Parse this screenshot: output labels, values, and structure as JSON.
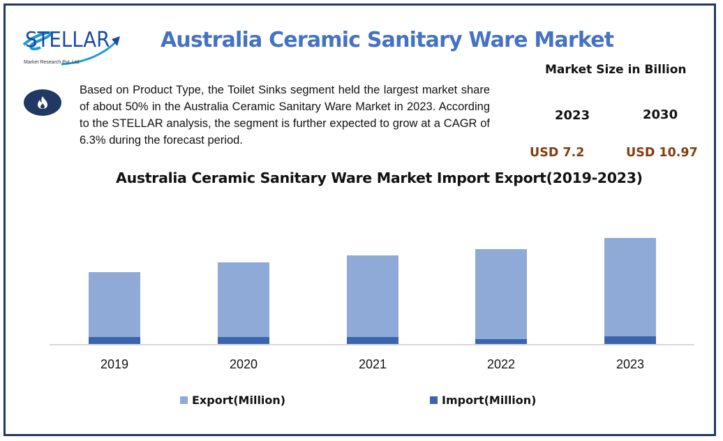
{
  "header": {
    "logo": {
      "brand": "STELLAR",
      "tagline": "Market Research Pvt. Ltd."
    },
    "title": "Australia Ceramic Sanitary Ware Market"
  },
  "insight": {
    "icon": "fire-icon",
    "text": "Based on Product Type, the Toilet Sinks segment held the largest market share of about 50% in the Australia Ceramic Sanitary Ware Market in 2023.  According to the STELLAR analysis, the segment is further expected to grow at a CAGR of 6.3% during the forecast period."
  },
  "market_size": {
    "title": "Market Size in Billion",
    "years": [
      "2023",
      "2030"
    ],
    "values": [
      "USD 7.2",
      "USD 10.97"
    ],
    "value_color": "#843c0c"
  },
  "chart_data": {
    "type": "bar",
    "stacked": true,
    "title": "Australia Ceramic Sanitary Ware Market Import Export(2019-2023)",
    "categories": [
      "2019",
      "2020",
      "2021",
      "2022",
      "2023"
    ],
    "series": [
      {
        "name": "Export(Million)",
        "color": "#8faad6",
        "values": [
          93,
          107,
          117,
          129,
          141
        ]
      },
      {
        "name": "Import(Million)",
        "color": "#3c64ad",
        "values": [
          11,
          11,
          11,
          8,
          12
        ]
      }
    ],
    "xlabel": "",
    "ylabel": "",
    "y_axis_visible": false,
    "grid": false,
    "legend_position": "bottom",
    "note": "Values are relative bar heights in pixels; no y-axis scale shown"
  },
  "colors": {
    "frame": "#1f3864",
    "title": "#4472c4",
    "export": "#8faad6",
    "import": "#3c64ad"
  }
}
